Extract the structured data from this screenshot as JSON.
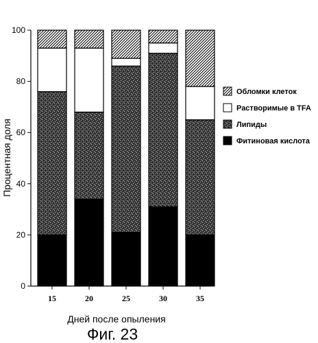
{
  "chart_data": {
    "type": "bar",
    "stacked": true,
    "categories": [
      "15",
      "20",
      "25",
      "30",
      "35"
    ],
    "series": [
      {
        "name": "Фитиновая кислота",
        "pattern": "solid-black",
        "values": [
          20,
          34,
          21,
          31,
          20
        ]
      },
      {
        "name": "Липиды",
        "pattern": "stipple-dark",
        "values": [
          56,
          34,
          65,
          60,
          45
        ]
      },
      {
        "name": "Растворимые в TFA",
        "pattern": "white",
        "values": [
          17,
          25,
          3,
          4,
          13
        ]
      },
      {
        "name": "Обломки клеток",
        "pattern": "hatch-diagonal",
        "values": [
          7,
          7,
          11,
          5,
          22
        ]
      }
    ],
    "legend_order": [
      "Обломки клеток",
      "Растворимые в TFA",
      "Липиды",
      "Фитиновая кислота"
    ],
    "legend_position": "right",
    "xlabel": "Дней после опыления",
    "ylabel": "Процентная доля",
    "ylim": [
      0,
      100
    ],
    "yticks": [
      0,
      20,
      40,
      60,
      80,
      100
    ],
    "grid": false
  },
  "caption": "Фиг. 23"
}
